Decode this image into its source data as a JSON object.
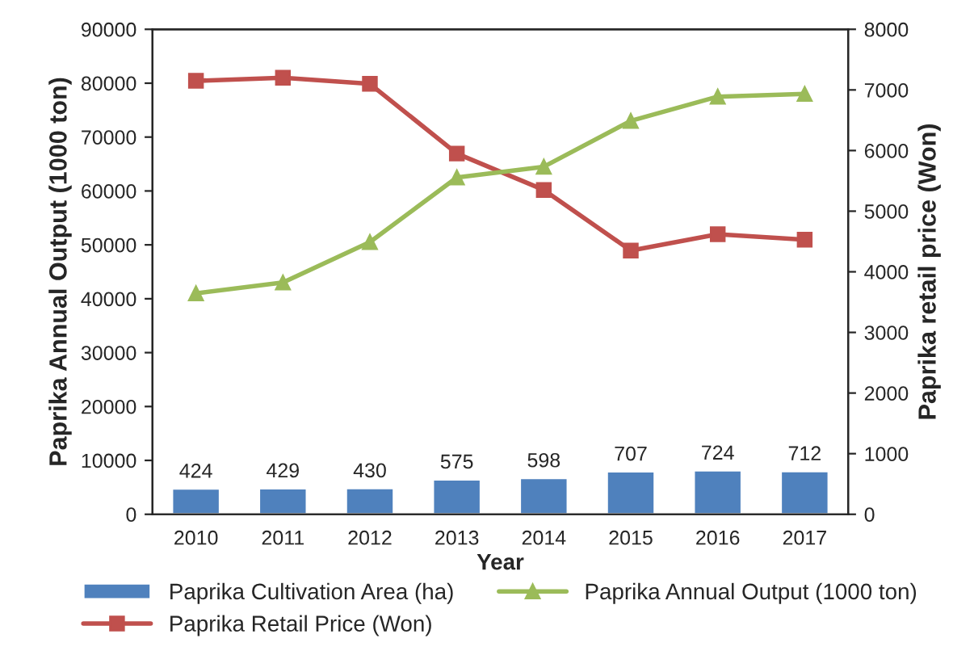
{
  "chart_data": {
    "type": "bar",
    "xlabel": "Year",
    "ylabel": "Paprika Annual Output (1000 ton)",
    "y2label": "Paprika retail price (Won)",
    "categories": [
      "2010",
      "2011",
      "2012",
      "2013",
      "2014",
      "2015",
      "2016",
      "2017"
    ],
    "series": [
      {
        "name": "Paprika Cultivation Area (ha)",
        "axis": "y2",
        "color": "#4f81bd",
        "values": [
          424,
          429,
          430,
          575,
          598,
          707,
          724,
          712
        ],
        "value_labels": [
          "424",
          "429",
          "430",
          "575",
          "598",
          "707",
          "724",
          "712"
        ]
      },
      {
        "name": "Paprika Annual Output (1000 ton)",
        "type": "line",
        "color": "#9bbb59",
        "marker": "triangle",
        "values": [
          41000,
          43000,
          50500,
          62500,
          64500,
          73000,
          77500,
          78000
        ]
      },
      {
        "name": "Paprika Retail Price (Won)",
        "type": "line",
        "axis": "y2",
        "color": "#c0504d",
        "marker": "square",
        "values": [
          7150,
          7200,
          7100,
          5950,
          5350,
          4350,
          4620,
          4530
        ]
      }
    ],
    "ylim": [
      0,
      90000
    ],
    "yticks": [
      0,
      10000,
      20000,
      30000,
      40000,
      50000,
      60000,
      70000,
      80000,
      90000
    ],
    "y2lim": [
      0,
      8000
    ],
    "y2ticks": [
      0,
      1000,
      2000,
      3000,
      4000,
      5000,
      6000,
      7000,
      8000
    ],
    "legend": "bottom"
  }
}
